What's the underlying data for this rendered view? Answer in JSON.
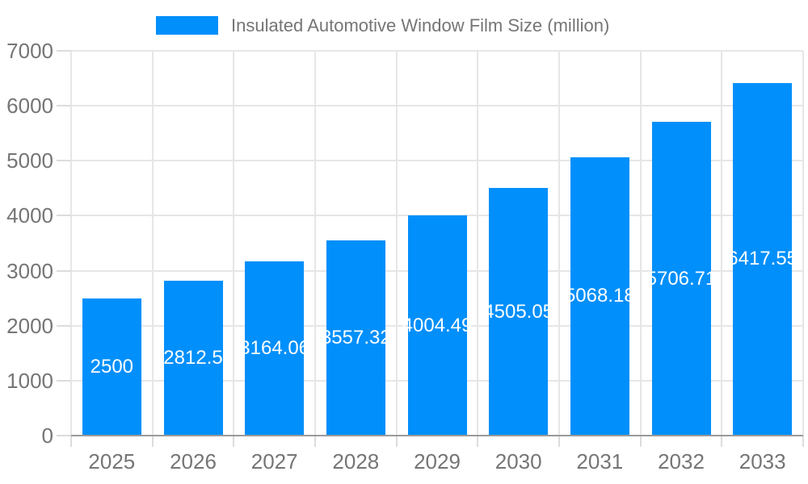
{
  "chart_data": {
    "type": "bar",
    "title": "",
    "legend": "Insulated Automotive Window Film Size (million)",
    "legend_position": "top",
    "categories": [
      "2025",
      "2026",
      "2027",
      "2028",
      "2029",
      "2030",
      "2031",
      "2032",
      "2033"
    ],
    "series": [
      {
        "name": "Insulated Automotive Window Film Size (million)",
        "values": [
          2500,
          2812.5,
          3164.06,
          3557.32,
          4004.49,
          4505.05,
          5068.18,
          5706.71,
          6417.55
        ]
      }
    ],
    "bar_labels": [
      "2500",
      "2812.5",
      "3164.06",
      "3557.32",
      "4004.49",
      "4505.05",
      "5068.18",
      "5706.71",
      "6417.55"
    ],
    "xlabel": "",
    "ylabel": "",
    "ylim": [
      0,
      7000
    ],
    "ytick_step": 1000,
    "yticks": [
      "0",
      "1000",
      "2000",
      "3000",
      "4000",
      "5000",
      "6000",
      "7000"
    ],
    "grid": true,
    "colors": {
      "bar": "#008FFB",
      "bar_label": "#ffffff",
      "axis_text": "#757575",
      "legend_text": "#757575",
      "gridline": "#e6e6e6",
      "baseline": "#9a9a9a",
      "tick": "#dcdcdc"
    }
  }
}
